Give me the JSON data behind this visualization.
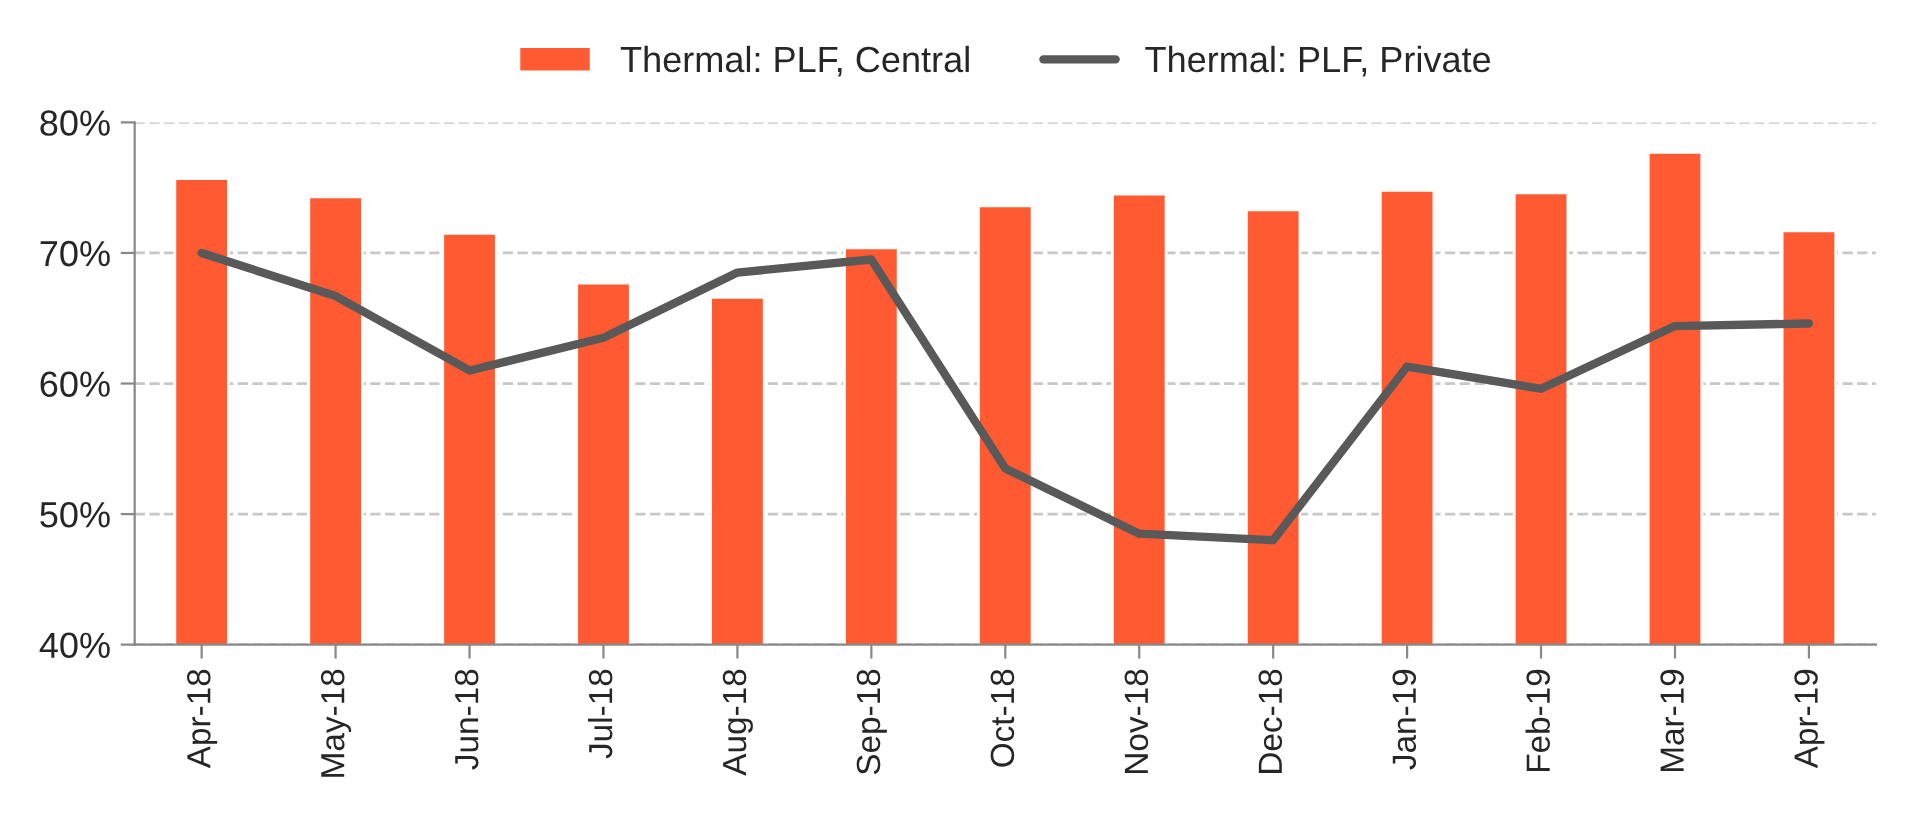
{
  "chart_data": {
    "type": "bar",
    "categories": [
      "Apr-18",
      "May-18",
      "Jun-18",
      "Jul-18",
      "Aug-18",
      "Sep-18",
      "Oct-18",
      "Nov-18",
      "Dec-18",
      "Jan-19",
      "Feb-19",
      "Mar-19",
      "Apr-19"
    ],
    "series": [
      {
        "name": "Thermal: PLF, Central",
        "color": "#ff5a32",
        "values": [
          75.7,
          74.3,
          71.5,
          67.7,
          66.6,
          70.4,
          73.6,
          74.5,
          73.3,
          74.8,
          74.6,
          77.7,
          71.7
        ]
      },
      {
        "name": "Thermal: PLF, Private",
        "type": "line",
        "color": "#595959",
        "values": [
          70.0,
          66.7,
          61.0,
          63.5,
          68.5,
          69.5,
          53.5,
          48.5,
          48.0,
          61.3,
          59.6,
          64.4,
          64.6
        ]
      }
    ],
    "ylim": [
      40,
      80
    ],
    "yticks": [
      {
        "value": 40,
        "label": "40%"
      },
      {
        "value": 50,
        "label": "50%"
      },
      {
        "value": 60,
        "label": "60%"
      },
      {
        "value": 70,
        "label": "70%"
      },
      {
        "value": 80,
        "label": "80%"
      }
    ],
    "grid": "y",
    "legend": "top",
    "marker": "none",
    "line_style": "solid"
  }
}
